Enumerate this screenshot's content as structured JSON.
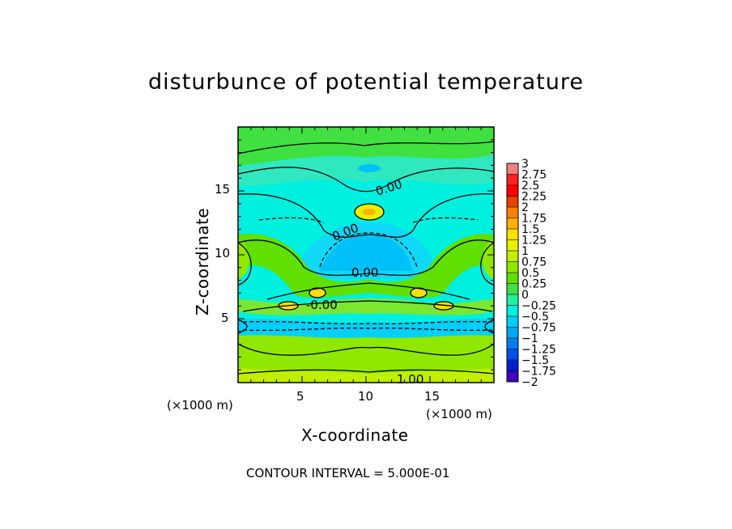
{
  "chart_data": {
    "type": "heatmap",
    "title": "disturbunce of potential temperature",
    "xlabel": "X-coordinate",
    "ylabel": "Z-coordinate",
    "x_unit_left": "(×1000 m)",
    "x_unit_right": "(×1000 m)",
    "xlim": [
      0,
      20
    ],
    "ylim": [
      0,
      20
    ],
    "x_ticks": [
      "5",
      "10",
      "15"
    ],
    "y_ticks": [
      "5",
      "10",
      "15"
    ],
    "contour_interval": "CONTOUR INTERVAL = 5.000E-01",
    "contour_labels": [
      "0.00",
      "0.00",
      "0.00",
      "-0.00",
      "1.00"
    ],
    "colorbar": {
      "levels": [
        "3",
        "2.75",
        "2.5",
        "2.25",
        "2",
        "1.75",
        "1.5",
        "1.25",
        "1",
        "0.75",
        "0.5",
        "0.25",
        "0",
        "−0.25",
        "−0.5",
        "−0.75",
        "−1",
        "−1.25",
        "−1.5",
        "−1.75",
        "−2"
      ],
      "colors": [
        "#f08080",
        "#ff2020",
        "#ff0000",
        "#e84000",
        "#ff8000",
        "#ffb000",
        "#ffe000",
        "#e8f000",
        "#c0f000",
        "#90e800",
        "#60e000",
        "#40e040",
        "#20f0a0",
        "#00f0e0",
        "#00d0f8",
        "#00a8f8",
        "#0080f0",
        "#0050e8",
        "#0020d0",
        "#4000c0"
      ]
    },
    "regions": [
      {
        "name": "top-band",
        "value": 0.25
      },
      {
        "name": "upper-cyan-band",
        "value": -0.25
      },
      {
        "name": "central-dome",
        "value": -0.5
      },
      {
        "name": "upper-yellow-peak",
        "value": 1.25
      },
      {
        "name": "middle-green-arc",
        "value": 0.5
      },
      {
        "name": "lower-blue-band",
        "value": -0.5
      },
      {
        "name": "bottom-green-layer",
        "value": 0.75
      },
      {
        "name": "surface-yellow",
        "value": 1.0
      }
    ]
  }
}
